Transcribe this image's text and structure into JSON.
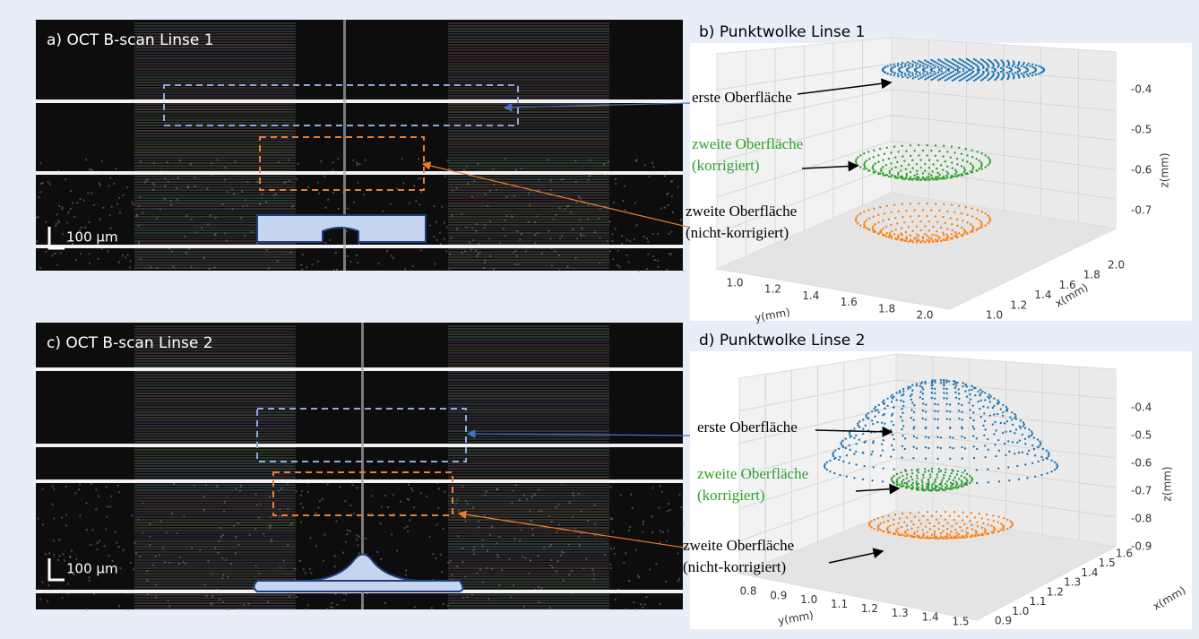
{
  "panel_a": {
    "title": "a) OCT B-scan Linse 1",
    "scale_bar": "100 µm"
  },
  "panel_b": {
    "title": "b) Punktwolke Linse 1",
    "annotations": {
      "first": "erste Oberfläche",
      "second_corrected": [
        "zweite Oberfläche",
        "(korrigiert)"
      ],
      "second_uncorrected": [
        "zweite Oberfläche",
        "(nicht-korrigiert)"
      ]
    },
    "z_axis": {
      "label": "z(mm)",
      "ticks": [
        "-0.4",
        "-0.5",
        "-0.6",
        "-0.7"
      ]
    },
    "y_axis": {
      "label": "y(mm)",
      "ticks": [
        "1.0",
        "1.2",
        "1.4",
        "1.6",
        "1.8",
        "2.0"
      ]
    },
    "x_axis": {
      "label": "x(mm)",
      "ticks": [
        "1.0",
        "1.2",
        "1.4",
        "1.6",
        "1.8",
        "2.0"
      ]
    }
  },
  "panel_c": {
    "title": "c) OCT B-scan Linse 2",
    "scale_bar": "100 µm"
  },
  "panel_d": {
    "title": "d) Punktwolke Linse 2",
    "annotations": {
      "first": "erste Oberfläche",
      "second_corrected": [
        "zweite Oberfläche",
        "(korrigiert)"
      ],
      "second_uncorrected": [
        "zweite Oberfläche",
        "(nicht-korrigiert)"
      ]
    },
    "z_axis": {
      "label": "z(mm)",
      "ticks": [
        "-0.4",
        "-0.5",
        "-0.6",
        "-0.7",
        "-0.8",
        "-0.9"
      ]
    },
    "y_axis": {
      "label": "y(mm)",
      "ticks": [
        "0.8",
        "0.9",
        "1.0",
        "1.1",
        "1.2",
        "1.3",
        "1.4",
        "1.5"
      ]
    },
    "x_axis": {
      "label": "x(mm)",
      "ticks": [
        "0.9",
        "1.0",
        "1.1",
        "1.2",
        "1.3",
        "1.4",
        "1.5",
        "1.6"
      ]
    }
  }
}
